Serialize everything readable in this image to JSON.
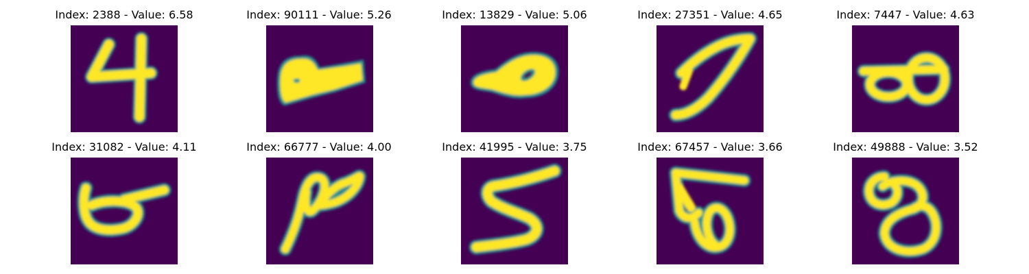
{
  "colors": {
    "background": "#440154",
    "foreground": "#fde725",
    "edge": "#21918c"
  },
  "images": [
    {
      "title": "Index: 2388 - Value: 6.58",
      "digit": "4"
    },
    {
      "title": "Index: 90111 - Value: 5.26",
      "digit": "blob"
    },
    {
      "title": "Index: 13829 - Value: 5.06",
      "digit": "0"
    },
    {
      "title": "Index: 27351 - Value: 4.65",
      "digit": "7"
    },
    {
      "title": "Index: 7447 - Value: 4.63",
      "digit": "8"
    },
    {
      "title": "Index: 31082 - Value: 4.11",
      "digit": "6"
    },
    {
      "title": "Index: 66777 - Value: 4.00",
      "digit": "8"
    },
    {
      "title": "Index: 41995 - Value: 3.75",
      "digit": "5"
    },
    {
      "title": "Index: 67457 - Value: 3.66",
      "digit": "5"
    },
    {
      "title": "Index: 49888 - Value: 3.52",
      "digit": "8"
    }
  ]
}
